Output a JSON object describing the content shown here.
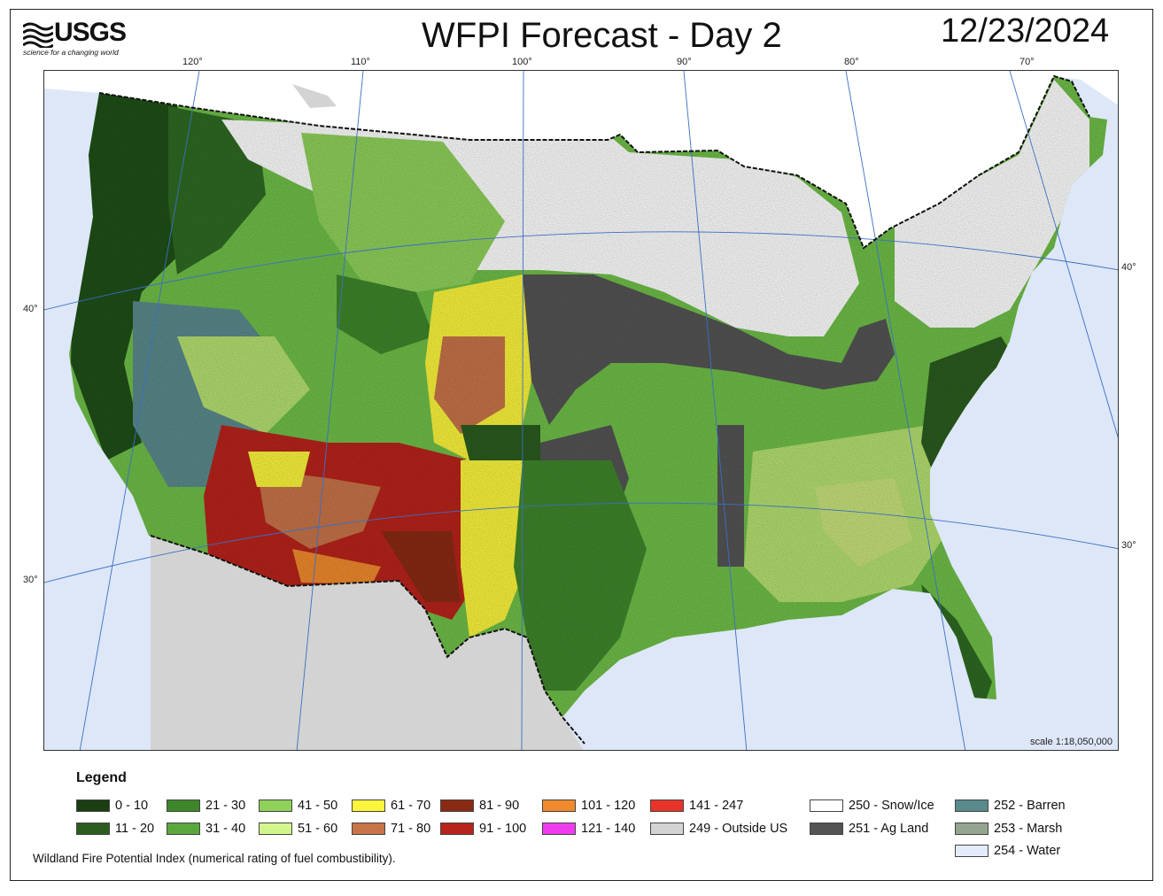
{
  "header": {
    "logo_text": "USGS",
    "logo_tagline": "science for a changing world",
    "title": "WFPI Forecast - Day 2",
    "date": "12/23/2024"
  },
  "graticule": {
    "longitudes": [
      "120°",
      "110°",
      "100°",
      "90°",
      "80°",
      "70°"
    ],
    "latitudes_left": [
      "40°",
      "30°"
    ],
    "latitudes_right": [
      "40°",
      "30°"
    ]
  },
  "map": {
    "scale_text": "scale 1:18,050,000"
  },
  "legend": {
    "title": "Legend",
    "items": [
      {
        "label": "0 - 10",
        "color": "#1b3d12"
      },
      {
        "label": "11 - 20",
        "color": "#2a5c1f"
      },
      {
        "label": "21 - 30",
        "color": "#3f862b"
      },
      {
        "label": "31 - 40",
        "color": "#5aa83b"
      },
      {
        "label": "41 - 50",
        "color": "#8fd15a"
      },
      {
        "label": "51 - 60",
        "color": "#d4f58c"
      },
      {
        "label": "61 - 70",
        "color": "#fbf53b"
      },
      {
        "label": "71 - 80",
        "color": "#c77448"
      },
      {
        "label": "81 - 90",
        "color": "#8a2a14"
      },
      {
        "label": "91 - 100",
        "color": "#b8231b"
      },
      {
        "label": "101 - 120",
        "color": "#f08a2c"
      },
      {
        "label": "121 - 140",
        "color": "#f03ced"
      },
      {
        "label": "141 - 247",
        "color": "#e8332a"
      },
      {
        "label": "249 - Outside US",
        "color": "#d3d3d3"
      },
      {
        "label": "250 - Snow/Ice",
        "color": "#ffffff"
      },
      {
        "label": "251 - Ag Land",
        "color": "#545454"
      },
      {
        "label": "252 - Barren",
        "color": "#5a8a8c"
      },
      {
        "label": "253 - Marsh",
        "color": "#93a58f"
      },
      {
        "label": "254 - Water",
        "color": "#e4ecfb"
      }
    ]
  },
  "footnote": "Wildland Fire Potential Index (numerical rating of fuel combustibility)."
}
